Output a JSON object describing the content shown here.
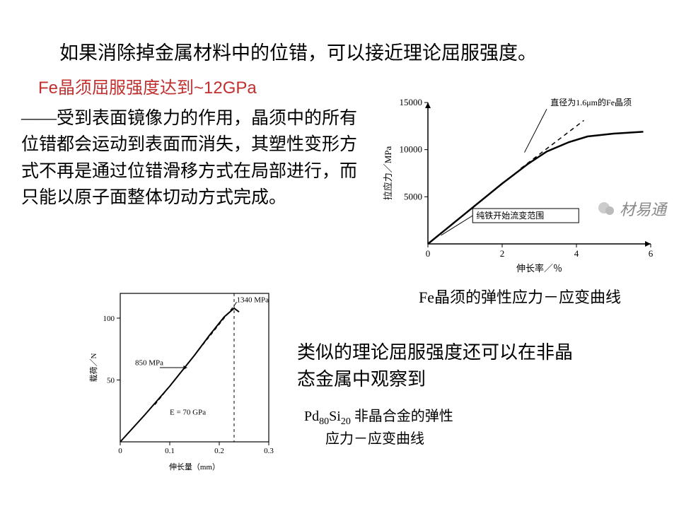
{
  "intro": "如果消除掉金属材料中的位错，可以接近理论屈服强度。",
  "fe_whisker_line": "Fe晶须屈服强度达到~12GPa",
  "body_paragraph": "——受到表面镜像力的作用，晶须中的所有位错都会运动到表面而消失，其塑性变形方式不再是通过位错滑移方式在局部进行，而只能以原子面整体切动方式完成。",
  "similar_text": "类似的理论屈服强度还可以在非晶态金属中观察到",
  "pd_caption_main": "非晶合金的弹性",
  "pd_caption_sub": "应力－应变曲线",
  "pd_formula_base1": "Pd",
  "pd_formula_sub1": "80",
  "pd_formula_base2": "Si",
  "pd_formula_sub2": "20",
  "watermark_text": "材易通",
  "colors": {
    "text": "#000000",
    "accent": "#c03030",
    "axis": "#000000",
    "curve": "#000000",
    "dashed": "#000000",
    "bg": "#ffffff",
    "watermark": "#888888"
  },
  "chart1": {
    "type": "line",
    "caption": "Fe晶须的弹性应力－应变曲线",
    "xlabel": "伸长率／％",
    "ylabel": "拉应力／MPa",
    "xlim": [
      0,
      6
    ],
    "ylim": [
      0,
      15000
    ],
    "xticks": [
      0,
      2,
      4,
      6
    ],
    "yticks": [
      5000,
      10000,
      15000
    ],
    "annotation1": "直径为1.6μm的Fe晶须",
    "annotation2": "纯铁开始流变范围",
    "curve_points": [
      [
        0,
        0
      ],
      [
        1.0,
        3200
      ],
      [
        2.0,
        6400
      ],
      [
        2.7,
        8500
      ],
      [
        3.2,
        9800
      ],
      [
        3.8,
        10800
      ],
      [
        4.3,
        11400
      ],
      [
        5.0,
        11700
      ],
      [
        5.8,
        11900
      ]
    ],
    "dashed_points": [
      [
        2.5,
        8000
      ],
      [
        3.5,
        11000
      ],
      [
        4.2,
        13100
      ]
    ],
    "curve_width": 2.5,
    "dashed_width": 1.5,
    "label_fontsize": 13
  },
  "chart2": {
    "type": "line",
    "xlabel": "伸长量（mm）",
    "ylabel": "载荷／N",
    "xlim": [
      0,
      0.3
    ],
    "ylim": [
      0,
      120
    ],
    "xticks": [
      0,
      0.1,
      0.2,
      0.3
    ],
    "yticks": [
      50,
      100
    ],
    "peak_label": "1340 MPa",
    "mid_label": "850 MPa",
    "modulus_label": "E = 70 GPa",
    "vline_x": 0.23,
    "curve_points": [
      [
        0,
        0
      ],
      [
        0.05,
        22
      ],
      [
        0.1,
        45
      ],
      [
        0.15,
        70
      ],
      [
        0.18,
        86
      ],
      [
        0.21,
        101
      ],
      [
        0.23,
        108
      ],
      [
        0.24,
        105
      ]
    ],
    "dashed_points": [
      [
        0.07,
        30
      ],
      [
        0.23,
        110
      ]
    ],
    "curve_width": 2,
    "dashed_width": 1.2,
    "label_fontsize": 11
  }
}
